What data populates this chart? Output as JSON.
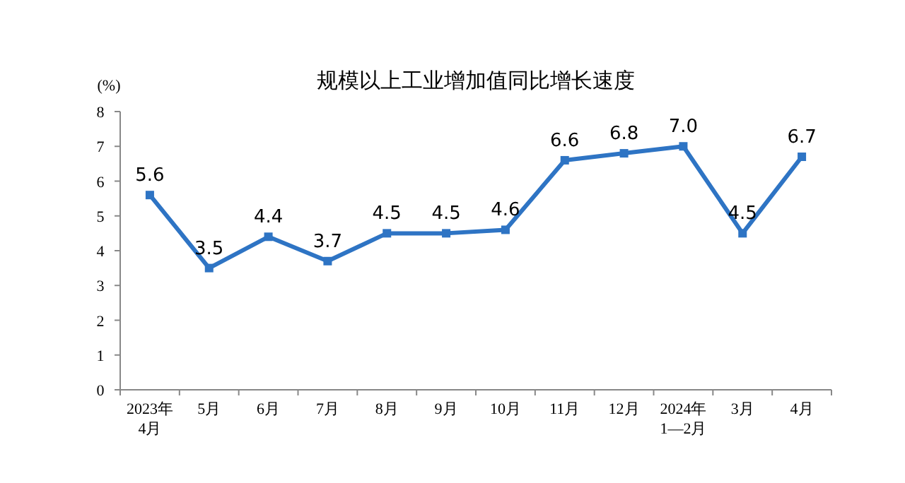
{
  "chart_data": {
    "type": "line",
    "title": "规模以上工业增加值同比增长速度",
    "ylabel": "(%)",
    "categories": [
      "2023年\n4月",
      "5月",
      "6月",
      "7月",
      "8月",
      "9月",
      "10月",
      "11月",
      "12月",
      "2024年\n1—2月",
      "3月",
      "4月"
    ],
    "values": [
      5.6,
      3.5,
      4.4,
      3.7,
      4.5,
      4.5,
      4.6,
      6.6,
      6.8,
      7.0,
      4.5,
      6.7
    ],
    "value_labels": [
      "5.6",
      "3.5",
      "4.4",
      "3.7",
      "4.5",
      "4.5",
      "4.6",
      "6.6",
      "6.8",
      "7.0",
      "4.5",
      "6.7"
    ],
    "color": "#2e74c4",
    "marker": "square",
    "line_style": "solid",
    "ylim": [
      0,
      8
    ],
    "yticks": [
      0,
      1,
      2,
      3,
      4,
      5,
      6,
      7,
      8
    ]
  }
}
